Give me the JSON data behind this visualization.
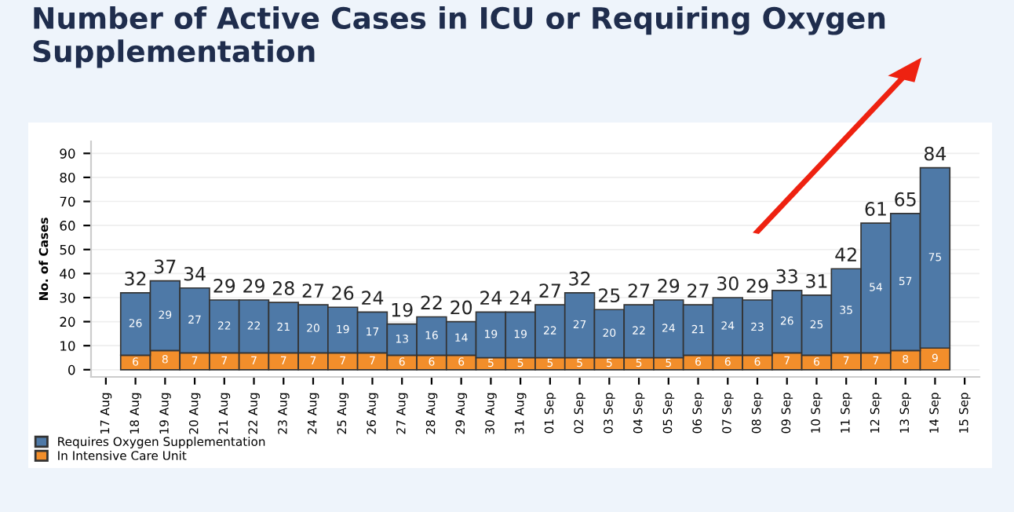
{
  "chart_data": {
    "type": "bar",
    "title": "Number of Active Cases in ICU or Requiring Oxygen Supplementation",
    "ylabel": "No. of Cases",
    "categories": [
      "17 Aug",
      "18 Aug",
      "19 Aug",
      "20 Aug",
      "21 Aug",
      "22 Aug",
      "23 Aug",
      "24 Aug",
      "25 Aug",
      "26 Aug",
      "27 Aug",
      "28 Aug",
      "29 Aug",
      "30 Aug",
      "31 Aug",
      "01 Sep",
      "02 Sep",
      "03 Sep",
      "04 Sep",
      "05 Sep",
      "06 Sep",
      "07 Sep",
      "08 Sep",
      "09 Sep",
      "10 Sep",
      "11 Sep",
      "12 Sep",
      "13 Sep",
      "14 Sep",
      "15 Sep"
    ],
    "stacked": true,
    "series": [
      {
        "name": "In Intensive Care Unit",
        "color": "#f28e2b",
        "values": [
          null,
          6,
          8,
          7,
          7,
          7,
          7,
          7,
          7,
          7,
          6,
          6,
          6,
          5,
          5,
          5,
          5,
          5,
          5,
          5,
          6,
          6,
          6,
          7,
          6,
          7,
          7,
          8,
          9,
          null
        ]
      },
      {
        "name": "Requires Oxygen Supplementation",
        "color": "#4e79a7",
        "values": [
          null,
          26,
          29,
          27,
          22,
          22,
          21,
          20,
          19,
          17,
          13,
          16,
          14,
          19,
          19,
          22,
          27,
          20,
          22,
          24,
          21,
          24,
          23,
          26,
          25,
          35,
          54,
          57,
          75,
          null
        ]
      }
    ],
    "totals": [
      null,
      "32",
      "37",
      "34",
      "29",
      "29",
      "28",
      "27",
      "26",
      "24",
      "19",
      "22",
      "20",
      "24",
      "24",
      "27",
      "32",
      "25",
      "27",
      "29",
      "27",
      "30",
      "29",
      "33",
      "31",
      "42",
      "61",
      "65",
      "84",
      null
    ],
    "data_labels": true,
    "ylim": [
      -3,
      95
    ],
    "yticks": [
      0,
      10,
      20,
      30,
      40,
      50,
      60,
      70,
      80,
      90
    ],
    "grid": "y",
    "legend": "bottom left"
  }
}
